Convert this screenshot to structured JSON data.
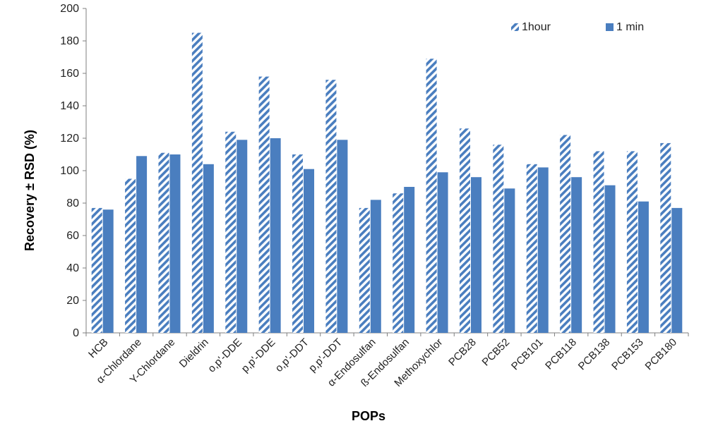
{
  "chart_data": {
    "type": "bar",
    "title": "",
    "xlabel": "POPs",
    "ylabel": "Recovery ± RSD (%)",
    "ylim": [
      0,
      200
    ],
    "yticks": [
      0,
      20,
      40,
      60,
      80,
      100,
      120,
      140,
      160,
      180,
      200
    ],
    "grid": false,
    "legend_position": "top-right",
    "categories": [
      "HCB",
      "α-Chlordane",
      "Υ-Chlordane",
      "Dieldrin",
      "o,p'-DDE",
      "p,p'-DDE",
      "o,p'-DDT",
      "p,p'-DDT",
      "α-Endosulfan",
      "ß-Endosulfan",
      "Methoxychlor",
      "PCB28",
      "PCB52",
      "PCB101",
      "PCB118",
      "PCB138",
      "PCB153",
      "PCB180"
    ],
    "series": [
      {
        "name": "1hour",
        "color": "#4a7ebf",
        "pattern": "diagonal-hatch",
        "values": [
          77,
          95,
          111,
          185,
          124,
          158,
          110,
          156,
          77,
          86,
          169,
          126,
          116,
          104,
          122,
          112,
          112,
          117
        ]
      },
      {
        "name": "1 min",
        "color": "#4a7ebf",
        "pattern": "solid",
        "values": [
          76,
          109,
          110,
          104,
          119,
          120,
          101,
          119,
          82,
          90,
          99,
          96,
          89,
          102,
          96,
          91,
          81,
          77
        ]
      }
    ]
  }
}
